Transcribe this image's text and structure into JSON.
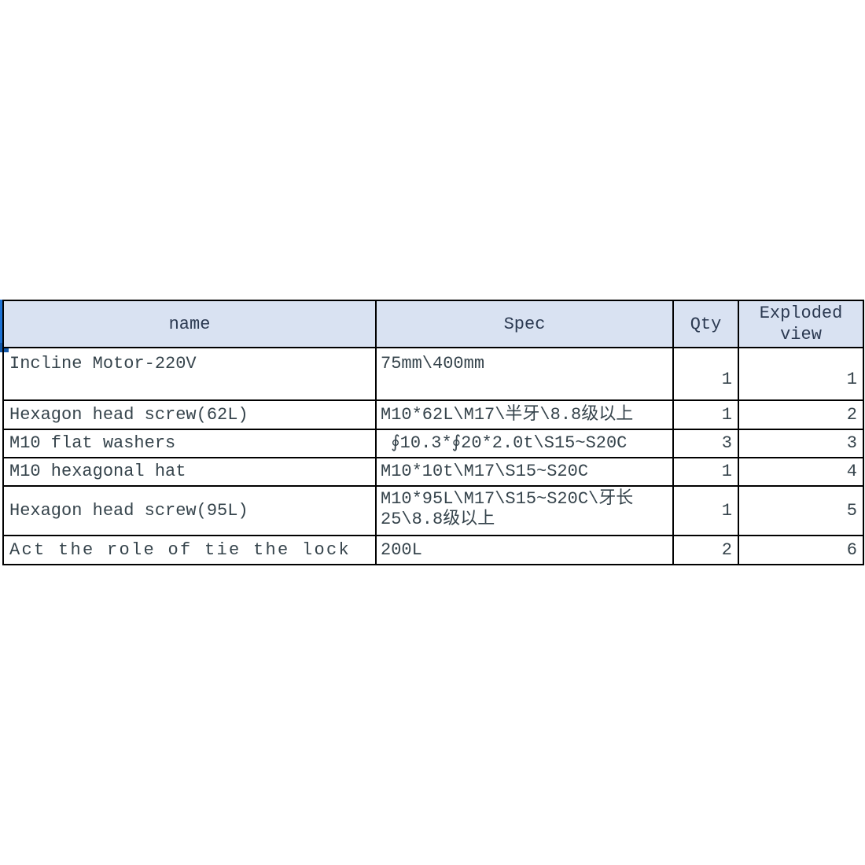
{
  "accent": {
    "selection_bar_color": "#1d72d5",
    "selection_handle_color": "#1358a9",
    "header_bg": "#d9e2f2",
    "header_text_color": "#2c3a52",
    "body_text_color": "#36444c",
    "border_color": "#000000"
  },
  "table": {
    "columns": [
      {
        "key": "name",
        "label": "name"
      },
      {
        "key": "spec",
        "label": "Spec"
      },
      {
        "key": "qty",
        "label": "Qty"
      },
      {
        "key": "view",
        "label": "Exploded view"
      }
    ],
    "rows": [
      {
        "name": "Incline Motor-220V",
        "spec": "75mm\\400mm",
        "qty": "1",
        "view": "1"
      },
      {
        "name": "Hexagon head screw(62L)",
        "spec": "M10*62L\\M17\\半牙\\8.8级以上",
        "qty": "1",
        "view": "2"
      },
      {
        "name": "M10 flat washers",
        "spec": " ∮10.3*∮20*2.0t\\S15~S20C",
        "qty": "3",
        "view": "3"
      },
      {
        "name": "M10 hexagonal hat",
        "spec": "M10*10t\\M17\\S15~S20C",
        "qty": "1",
        "view": "4"
      },
      {
        "name": "Hexagon head screw(95L)",
        "spec": "M10*95L\\M17\\S15~S20C\\牙长\n25\\8.8级以上",
        "qty": "1",
        "view": "5"
      },
      {
        "name": "Act the role of tie the lock",
        "spec": "200L",
        "qty": "2",
        "view": "6"
      }
    ]
  }
}
